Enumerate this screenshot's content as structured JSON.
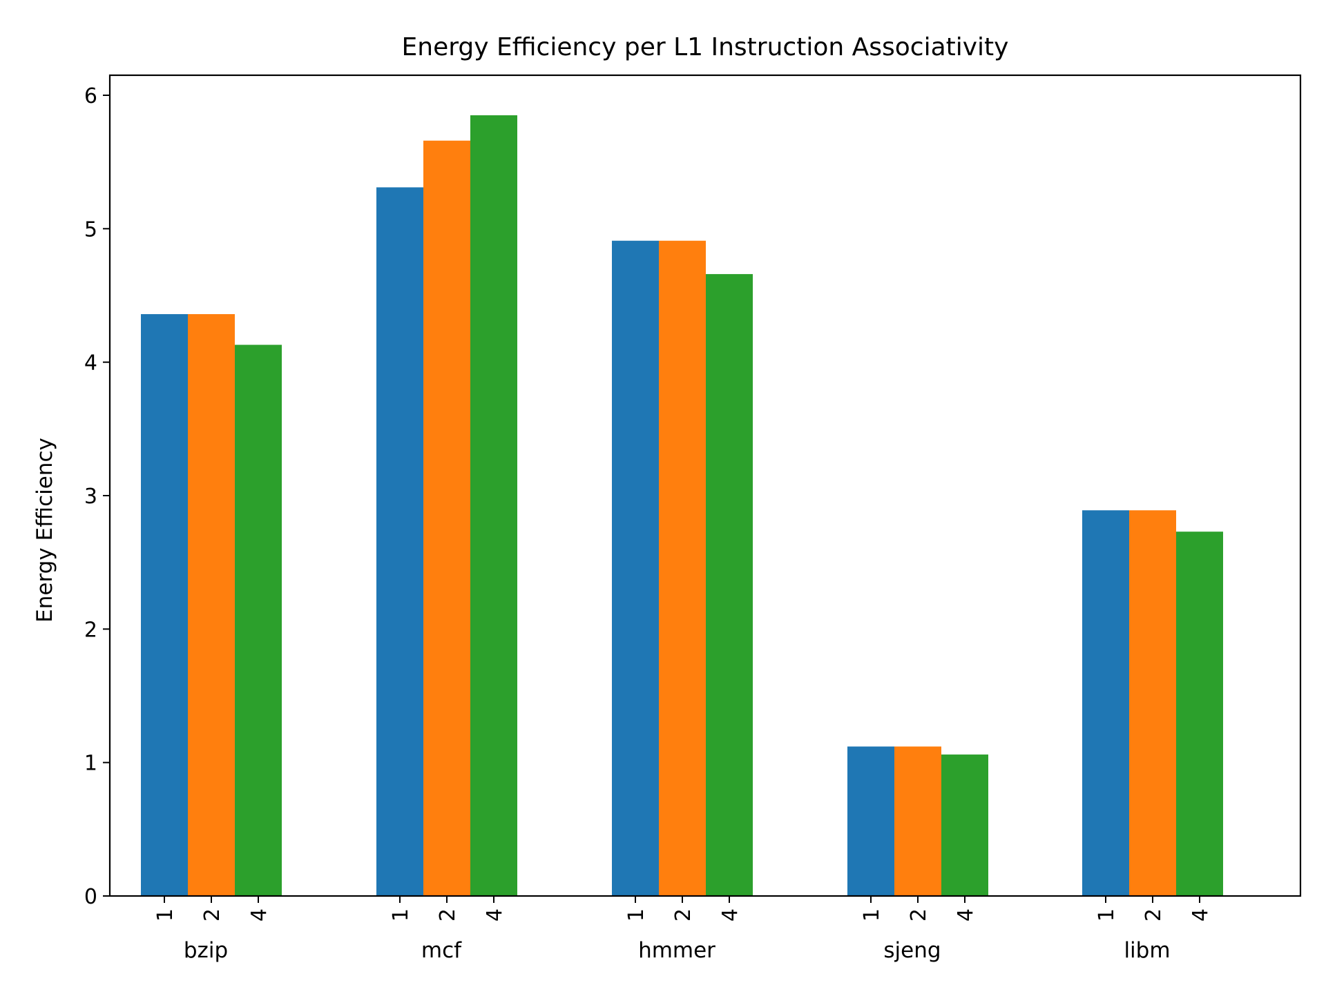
{
  "chart_data": {
    "type": "bar",
    "title": "Energy Efficiency per L1 Instruction Associativity",
    "xlabel": "",
    "ylabel": "Energy Efficiency",
    "ylim": [
      0,
      6.15
    ],
    "yticks": [
      0,
      1,
      2,
      3,
      4,
      5,
      6
    ],
    "grid": false,
    "legend": "none",
    "categories": [
      "bzip",
      "mcf",
      "hmmer",
      "sjeng",
      "libm"
    ],
    "subcategories": [
      "1",
      "2",
      "4"
    ],
    "series": [
      {
        "label": "1",
        "color": "#1f77b4",
        "values": [
          4.36,
          5.31,
          4.91,
          1.12,
          2.89
        ]
      },
      {
        "label": "2",
        "color": "#ff7f0e",
        "values": [
          4.36,
          5.66,
          4.91,
          1.12,
          2.89
        ]
      },
      {
        "label": "4",
        "color": "#2ca02c",
        "values": [
          4.13,
          5.85,
          4.66,
          1.06,
          2.73
        ]
      }
    ]
  }
}
